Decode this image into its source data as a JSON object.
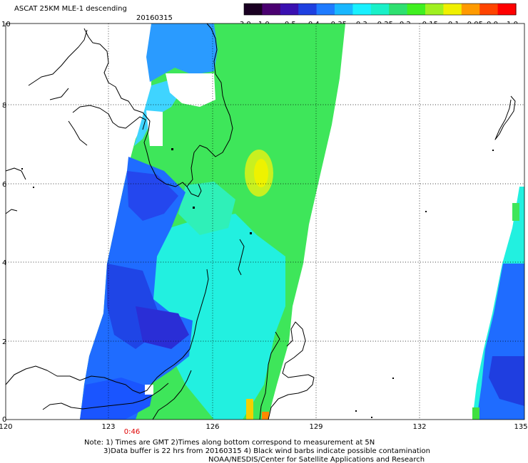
{
  "header": {
    "title": "ASCAT 25KM MLE-1 descending",
    "date": "20160315"
  },
  "colorbar": {
    "ticks": [
      "-3.0",
      "-1.0",
      "-0.5",
      "-0.4",
      "-0.35",
      "-0.3",
      "-0.25",
      "-0.2",
      "-0.15",
      "-0.1",
      "-0.05",
      "0.0",
      "1.0"
    ],
    "colors": [
      "#1a0022",
      "#4a0070",
      "#3a10b0",
      "#1e40e0",
      "#1f7bff",
      "#19b7ff",
      "#19f0ff",
      "#19f0c8",
      "#2ee070",
      "#40f020",
      "#a0f020",
      "#f0f000",
      "#ff9a00",
      "#ff4400",
      "#ff0000"
    ]
  },
  "map": {
    "x_ticks": [
      "120",
      "123",
      "126",
      "129",
      "132",
      "135"
    ],
    "y_ticks": [
      "0",
      "2",
      "4",
      "6",
      "8",
      "10"
    ],
    "lon_range": [
      120,
      135
    ],
    "lat_range": [
      0,
      10
    ],
    "time_label": "0:46",
    "time_label_color": "#e00000",
    "grid": "dotted"
  },
  "notes": [
    "Note: 1) Times are GMT 2)Times along bottom correspond to measurement at 5N",
    "3)Data buffer is 22 hrs from 20160315 4) Black wind barbs indicate possible contamination",
    "NOAA/NESDIS/Center for Satellite Applications and Research"
  ]
}
